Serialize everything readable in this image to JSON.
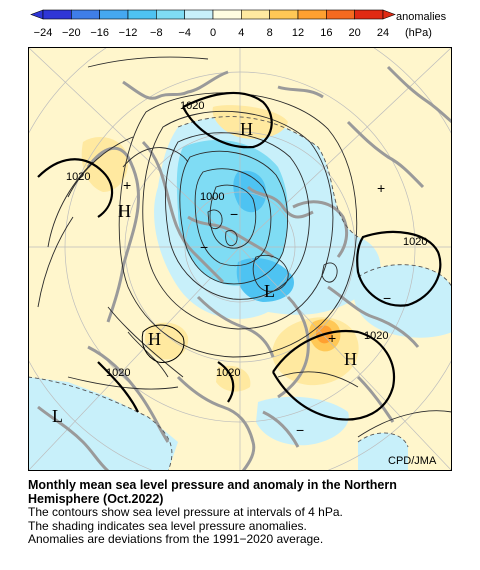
{
  "legend": {
    "title_line1": "anomalies",
    "title_line2": "(hPa)",
    "ticks": [
      "−24",
      "−20",
      "−16",
      "−12",
      "−8",
      "−4",
      "0",
      "4",
      "8",
      "12",
      "16",
      "20",
      "24"
    ],
    "colors": [
      "#2f36d6",
      "#3f7ee8",
      "#45a8f0",
      "#4ec3f2",
      "#7fdcf4",
      "#c8f0fa",
      "#fffde0",
      "#ffe9a0",
      "#ffc856",
      "#ffa030",
      "#f56a20",
      "#e02a14"
    ]
  },
  "map": {
    "credit": "CPD/JMA",
    "pressure_centers": [
      {
        "id": "h-north",
        "text": "H"
      },
      {
        "id": "h-left",
        "text": "H"
      },
      {
        "id": "h-center",
        "text": "H"
      },
      {
        "id": "h-right",
        "text": "H"
      },
      {
        "id": "l-center",
        "text": "L"
      },
      {
        "id": "l-lower",
        "text": "L"
      }
    ],
    "contour_labels": [
      {
        "id": "c1",
        "text": "1020"
      },
      {
        "id": "c2",
        "text": "1020"
      },
      {
        "id": "c3",
        "text": "1000"
      },
      {
        "id": "c4",
        "text": "1020"
      },
      {
        "id": "c5",
        "text": "1020"
      },
      {
        "id": "c6",
        "text": "1020"
      },
      {
        "id": "c7",
        "text": "1020"
      }
    ],
    "colors": {
      "ocean_low": "#c8f0fa",
      "land_pos": "#fff0b8",
      "coast": "#9a9a9a"
    }
  },
  "caption": {
    "title_line1": "Monthly mean sea level pressure and anomaly in the Northern",
    "title_line2": "Hemisphere (Oct.2022)",
    "line1": "The contours show sea level pressure at intervals of 4 hPa.",
    "line2": "The shading indicates sea level pressure anomalies.",
    "line3": "Anomalies are deviations from the 1991−2020 average."
  }
}
